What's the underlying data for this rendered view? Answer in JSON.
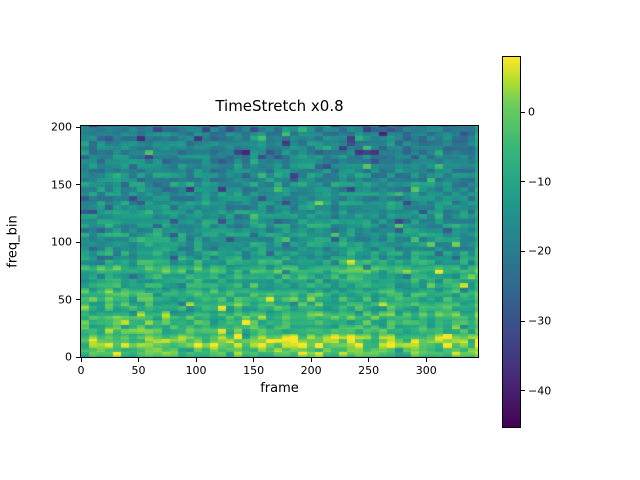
{
  "chart_data": {
    "type": "heatmap",
    "title": "TimeStretch x0.8",
    "xlabel": "frame",
    "ylabel": "freq_bin",
    "x_range": [
      0,
      345
    ],
    "y_range": [
      0,
      201
    ],
    "x_ticks": {
      "values": [
        0,
        50,
        100,
        150,
        200,
        250,
        300
      ],
      "labels": [
        "0",
        "50",
        "100",
        "150",
        "200",
        "250",
        "300"
      ]
    },
    "y_ticks": {
      "values": [
        0,
        50,
        100,
        150,
        200
      ],
      "labels": [
        "0",
        "50",
        "100",
        "150",
        "200"
      ]
    },
    "grid": false,
    "colorbar": {
      "position": "right",
      "vmin": -45.2,
      "vmax": 7.9,
      "tick_values": [
        0,
        -10,
        -20,
        -30,
        -40
      ],
      "tick_labels": [
        "0",
        "−10",
        "−20",
        "−30",
        "−40"
      ],
      "colormap": "viridis",
      "stops": [
        [
          0,
          "#440154"
        ],
        [
          0.125,
          "#482878"
        ],
        [
          0.25,
          "#3e4989"
        ],
        [
          0.375,
          "#31688e"
        ],
        [
          0.5,
          "#26828e"
        ],
        [
          0.625,
          "#1f9e89"
        ],
        [
          0.75,
          "#35b779"
        ],
        [
          0.875,
          "#6ece58"
        ],
        [
          0.9375,
          "#b5de2b"
        ],
        [
          1,
          "#fde725"
        ]
      ]
    },
    "spectrogram_model": {
      "n_frames": 345,
      "n_bins": 201,
      "base_db_at_bin0": -8,
      "base_db_at_bin200": -21,
      "block_frames": 7,
      "block_bins": 4,
      "noise_db": 12,
      "column_mod_db": 4,
      "bright_spike_db": 9,
      "dark_spike_db": -9,
      "right_edge_boost_db": 7,
      "bright_bands": [
        [
          3,
          1.5,
          6
        ],
        [
          10,
          3,
          10
        ],
        [
          16,
          2.5,
          9
        ],
        [
          23,
          2,
          6
        ],
        [
          29,
          1.5,
          5
        ],
        [
          35,
          2.5,
          8
        ],
        [
          44,
          2,
          5
        ],
        [
          50,
          1.5,
          5
        ],
        [
          55,
          2,
          7
        ],
        [
          62,
          1.5,
          4
        ],
        [
          68,
          1.5,
          4
        ],
        [
          75,
          2.5,
          8
        ],
        [
          83,
          1.5,
          4
        ],
        [
          90,
          1.5,
          3.5
        ],
        [
          98,
          1.5,
          3
        ],
        [
          106,
          1.5,
          3.5
        ],
        [
          115,
          1.5,
          3
        ],
        [
          124,
          1.5,
          2.5
        ],
        [
          133,
          1.5,
          3
        ],
        [
          141,
          1.5,
          2.5
        ],
        [
          150,
          1.5,
          3
        ],
        [
          158,
          1.5,
          3
        ],
        [
          166,
          1.5,
          2.5
        ],
        [
          175,
          1.5,
          2.5
        ],
        [
          184,
          1.5,
          2.5
        ],
        [
          192,
          1.5,
          2.5
        ]
      ]
    }
  }
}
